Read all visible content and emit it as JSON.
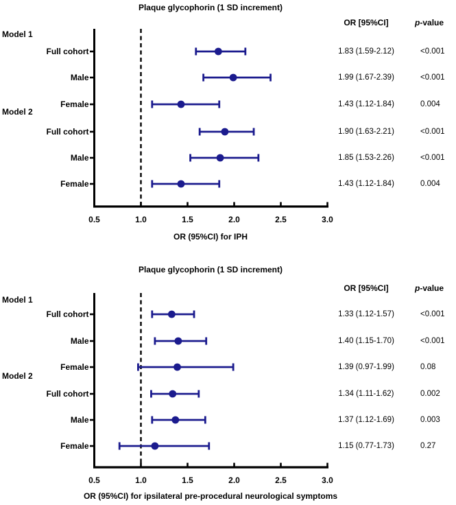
{
  "colors": {
    "marker": "#1b1b8e",
    "axis": "#000000",
    "text": "#000000",
    "background": "#ffffff"
  },
  "chart_data": [
    {
      "type": "forest",
      "title": "Plaque glycophorin (1 SD increment)",
      "xlabel": "OR (95%CI) for IPH",
      "or_header": "OR [95%CI]",
      "p_header_italic": "p",
      "p_header_rest": "-value",
      "xlim": [
        0.5,
        3.0
      ],
      "refline": 1.0,
      "xtick_values": [
        0.5,
        1.0,
        1.5,
        2.0,
        2.5,
        3.0
      ],
      "xtick_labels": [
        "0.5",
        "1.0",
        "1.5",
        "2.0",
        "2.5",
        "3.0"
      ],
      "groups": [
        "Model 1",
        "Model 2"
      ],
      "rows": [
        {
          "label": "Full cohort",
          "or": 1.83,
          "ci_lo": 1.59,
          "ci_hi": 2.12,
          "or_text": "1.83 (1.59-2.12)",
          "p_text": "<0.001"
        },
        {
          "label": "Male",
          "or": 1.99,
          "ci_lo": 1.67,
          "ci_hi": 2.39,
          "or_text": "1.99 (1.67-2.39)",
          "p_text": "<0.001"
        },
        {
          "label": "Female",
          "or": 1.43,
          "ci_lo": 1.12,
          "ci_hi": 1.84,
          "or_text": "1.43 (1.12-1.84)",
          "p_text": "0.004"
        },
        {
          "label": "Full cohort",
          "or": 1.9,
          "ci_lo": 1.63,
          "ci_hi": 2.21,
          "or_text": "1.90 (1.63-2.21)",
          "p_text": "<0.001"
        },
        {
          "label": "Male",
          "or": 1.85,
          "ci_lo": 1.53,
          "ci_hi": 2.26,
          "or_text": "1.85 (1.53-2.26)",
          "p_text": "<0.001"
        },
        {
          "label": "Female",
          "or": 1.43,
          "ci_lo": 1.12,
          "ci_hi": 1.84,
          "or_text": "1.43 (1.12-1.84)",
          "p_text": "0.004"
        }
      ]
    },
    {
      "type": "forest",
      "title": "Plaque glycophorin (1 SD increment)",
      "xlabel": "OR (95%CI) for ipsilateral pre-procedural neurological symptoms",
      "or_header": "OR [95%CI]",
      "p_header_italic": "p",
      "p_header_rest": "-value",
      "xlim": [
        0.5,
        3.0
      ],
      "refline": 1.0,
      "xtick_values": [
        0.5,
        1.0,
        1.5,
        2.0,
        2.5,
        3.0
      ],
      "xtick_labels": [
        "0.5",
        "1.0",
        "1.5",
        "2.0",
        "2.5",
        "3.0"
      ],
      "groups": [
        "Model 1",
        "Model 2"
      ],
      "rows": [
        {
          "label": "Full cohort",
          "or": 1.33,
          "ci_lo": 1.12,
          "ci_hi": 1.57,
          "or_text": "1.33 (1.12-1.57)",
          "p_text": "<0.001"
        },
        {
          "label": "Male",
          "or": 1.4,
          "ci_lo": 1.15,
          "ci_hi": 1.7,
          "or_text": "1.40 (1.15-1.70)",
          "p_text": "<0.001"
        },
        {
          "label": "Female",
          "or": 1.39,
          "ci_lo": 0.97,
          "ci_hi": 1.99,
          "or_text": "1.39 (0.97-1.99)",
          "p_text": "0.08"
        },
        {
          "label": "Full cohort",
          "or": 1.34,
          "ci_lo": 1.11,
          "ci_hi": 1.62,
          "or_text": "1.34 (1.11-1.62)",
          "p_text": "0.002"
        },
        {
          "label": "Male",
          "or": 1.37,
          "ci_lo": 1.12,
          "ci_hi": 1.69,
          "or_text": "1.37 (1.12-1.69)",
          "p_text": "0.003"
        },
        {
          "label": "Female",
          "or": 1.15,
          "ci_lo": 0.77,
          "ci_hi": 1.73,
          "or_text": "1.15 (0.77-1.73)",
          "p_text": "0.27"
        }
      ]
    }
  ]
}
